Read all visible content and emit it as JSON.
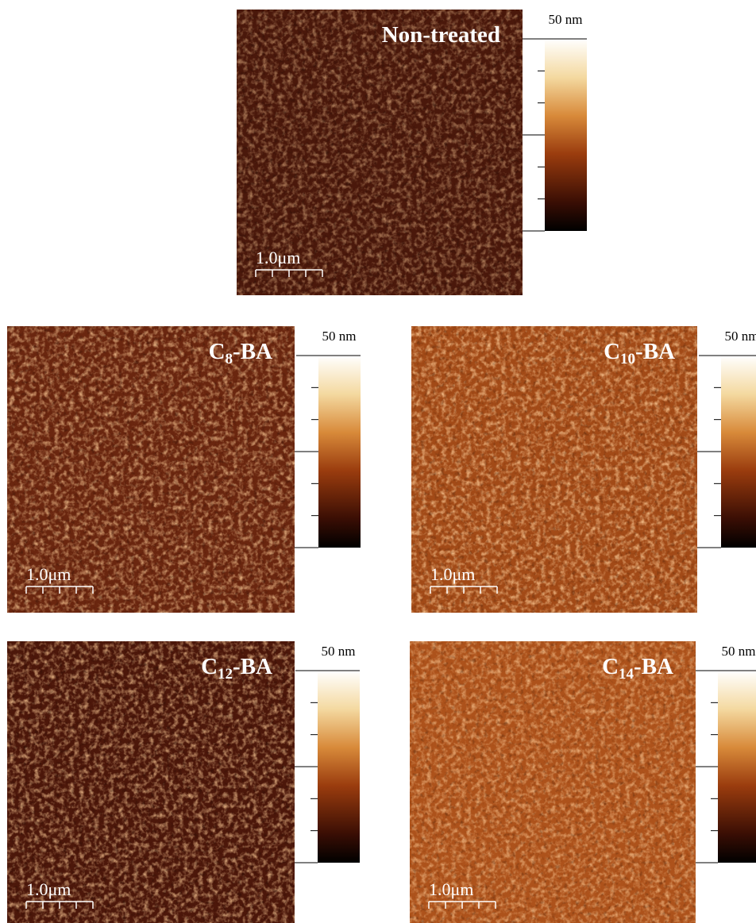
{
  "panels": [
    {
      "label": {
        "prefix": "Non-treated"
      },
      "scale_bar": "1.0μm",
      "colorbar_max": "50 nm"
    },
    {
      "label": {
        "prefix": "C",
        "sub": "8",
        "suffix": "-BA"
      },
      "scale_bar": "1.0μm",
      "colorbar_max": "50 nm"
    },
    {
      "label": {
        "prefix": "C",
        "sub": "10",
        "suffix": "-BA"
      },
      "scale_bar": "1.0μm",
      "colorbar_max": "50 nm"
    },
    {
      "label": {
        "prefix": "C",
        "sub": "12",
        "suffix": "-BA"
      },
      "scale_bar": "1.0μm",
      "colorbar_max": "50 nm"
    },
    {
      "label": {
        "prefix": "C",
        "sub": "14",
        "suffix": "-BA"
      },
      "scale_bar": "1.0μm",
      "colorbar_max": "50 nm"
    }
  ]
}
